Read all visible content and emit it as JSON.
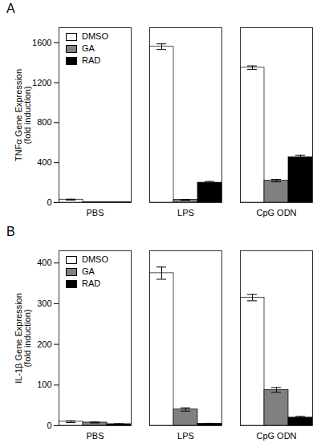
{
  "chart_data": [
    {
      "type": "bar",
      "title": "A",
      "ylabel": "TNFα Gene Expression\n(fold induction)",
      "categories": [
        "PBS",
        "LPS",
        "CpG ODN"
      ],
      "series": [
        {
          "name": "DMSO",
          "color": "#ffffff",
          "values": [
            30,
            1560,
            1350
          ],
          "errors": [
            4,
            28,
            18
          ]
        },
        {
          "name": "GA",
          "color": "#808080",
          "values": [
            5,
            28,
            220
          ],
          "errors": [
            2,
            4,
            12
          ]
        },
        {
          "name": "RAD",
          "color": "#000000",
          "values": [
            5,
            200,
            455
          ],
          "errors": [
            2,
            12,
            20
          ]
        }
      ],
      "ylim": [
        0,
        1750
      ],
      "yticks": [
        0,
        400,
        800,
        1200,
        1600
      ],
      "legend": "upper left"
    },
    {
      "type": "bar",
      "title": "B",
      "ylabel": "IL-1β Gene Expression\n(fold induction)",
      "categories": [
        "PBS",
        "LPS",
        "CpG ODN"
      ],
      "series": [
        {
          "name": "DMSO",
          "color": "#ffffff",
          "values": [
            10,
            375,
            315
          ],
          "errors": [
            2,
            15,
            8
          ]
        },
        {
          "name": "GA",
          "color": "#808080",
          "values": [
            8,
            40,
            88
          ],
          "errors": [
            1,
            4,
            6
          ]
        },
        {
          "name": "RAD",
          "color": "#000000",
          "values": [
            4,
            5,
            20
          ],
          "errors": [
            1,
            1,
            3
          ]
        }
      ],
      "ylim": [
        0,
        430
      ],
      "yticks": [
        0,
        100,
        200,
        300,
        400
      ],
      "legend": "upper left"
    }
  ]
}
